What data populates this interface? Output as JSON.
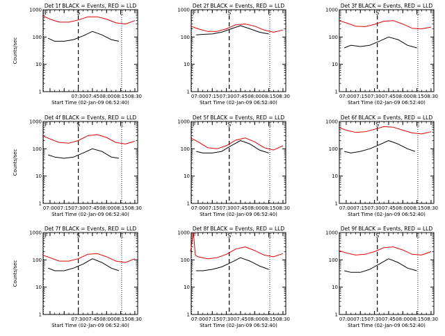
{
  "ytick_labels": [
    "1",
    "10",
    "100",
    "1000"
  ],
  "colors": {
    "events": "#000000",
    "lld": "#e00000",
    "frame": "#000000"
  },
  "chart_data": [
    {
      "type": "line",
      "title": "Det 1f BLACK = Events, RED = LLD",
      "xlabel": "Start Time (02-Jan-09 06:52:40)",
      "ylabel": "Counts/sec",
      "yscale": "log",
      "ylim": [
        1,
        1000
      ],
      "xlim": [
        "06:52:40",
        "08:33:00"
      ],
      "xtick_labels": [
        "07:30",
        "07:45",
        "08:00",
        "08:15",
        "08:30"
      ],
      "markers": [
        {
          "label": "F",
          "x": "06:53"
        },
        {
          "label": "S",
          "x": "07:30"
        },
        {
          "label": "E",
          "x": "08:16"
        }
      ],
      "series": [
        {
          "name": "Events",
          "x": [
            "06:58",
            "07:05",
            "07:15",
            "07:25",
            "07:35",
            "07:45",
            "07:55",
            "08:05",
            "08:13"
          ],
          "values": [
            90,
            70,
            70,
            80,
            110,
            160,
            120,
            80,
            70
          ]
        },
        {
          "name": "LLD",
          "x": [
            "06:52",
            "07:00",
            "07:10",
            "07:20",
            "07:30",
            "07:40",
            "07:50",
            "08:00",
            "08:10",
            "08:20",
            "08:30"
          ],
          "values": [
            600,
            450,
            350,
            350,
            420,
            550,
            550,
            450,
            330,
            300,
            400
          ]
        }
      ]
    },
    {
      "type": "line",
      "title": "Det 2f BLACK = Events, RED = LLD",
      "xlabel": "Start Time (02-Jan-09 06:52:40)",
      "ylabel": "",
      "yscale": "log",
      "ylim": [
        1,
        1000
      ],
      "xlim": [
        "06:52:40",
        "08:33:00"
      ],
      "xtick_labels": [
        "07:00",
        "07:15",
        "07:30",
        "07:45",
        "08:00",
        "08:15",
        "08:30"
      ],
      "markers": [
        {
          "label": "F",
          "x": "06:53"
        },
        {
          "label": "S",
          "x": "07:33"
        },
        {
          "label": "E",
          "x": "08:16"
        }
      ],
      "series": [
        {
          "name": "Events",
          "x": [
            "06:58",
            "07:05",
            "07:15",
            "07:25",
            "07:35",
            "07:45",
            "07:55",
            "08:05",
            "08:15"
          ],
          "values": [
            120,
            125,
            130,
            150,
            200,
            260,
            200,
            150,
            130
          ]
        },
        {
          "name": "LLD",
          "x": [
            "06:52",
            "07:00",
            "07:10",
            "07:20",
            "07:30",
            "07:40",
            "07:50",
            "08:00",
            "08:10",
            "08:20",
            "08:30"
          ],
          "values": [
            250,
            200,
            160,
            160,
            200,
            280,
            300,
            250,
            180,
            150,
            180
          ]
        }
      ]
    },
    {
      "type": "line",
      "title": "Det 3f BLACK = Events, RED = LLD",
      "xlabel": "Start Time (02-Jan-09 06:52:40)",
      "ylabel": "",
      "yscale": "log",
      "ylim": [
        1,
        1000
      ],
      "xlim": [
        "06:52:40",
        "08:33:00"
      ],
      "xtick_labels": [
        "07:00",
        "07:15",
        "07:30",
        "07:45",
        "08:00",
        "08:15",
        "08:30"
      ],
      "markers": [
        {
          "label": "S",
          "x": "07:33"
        },
        {
          "label": "E",
          "x": "08:16"
        }
      ],
      "series": [
        {
          "name": "Events",
          "x": [
            "06:58",
            "07:05",
            "07:15",
            "07:25",
            "07:35",
            "07:45",
            "07:55",
            "08:05",
            "08:15"
          ],
          "values": [
            40,
            50,
            45,
            50,
            70,
            100,
            80,
            50,
            40
          ]
        },
        {
          "name": "LLD",
          "x": [
            "06:52",
            "07:00",
            "07:10",
            "07:20",
            "07:30",
            "07:40",
            "07:50",
            "08:00",
            "08:10",
            "08:20",
            "08:30"
          ],
          "values": [
            400,
            330,
            250,
            240,
            290,
            380,
            400,
            300,
            210,
            200,
            230
          ]
        }
      ]
    },
    {
      "type": "line",
      "title": "Det 4f BLACK = Events, RED = LLD",
      "xlabel": "Start Time (02-Jan-09 06:52:40)",
      "ylabel": "Counts/sec",
      "yscale": "log",
      "ylim": [
        1,
        1000
      ],
      "xlim": [
        "06:52:40",
        "08:33:00"
      ],
      "xtick_labels": [
        "07:00",
        "07:15",
        "07:30",
        "07:45",
        "08:00",
        "08:15",
        "08:30"
      ],
      "markers": [
        {
          "label": "F",
          "x": "06:53"
        },
        {
          "label": "S",
          "x": "07:30"
        },
        {
          "label": "E",
          "x": "08:16"
        }
      ],
      "series": [
        {
          "name": "Events",
          "x": [
            "06:58",
            "07:05",
            "07:15",
            "07:25",
            "07:35",
            "07:45",
            "07:55",
            "08:05",
            "08:13"
          ],
          "values": [
            60,
            50,
            45,
            50,
            70,
            100,
            80,
            50,
            45
          ]
        },
        {
          "name": "LLD",
          "x": [
            "06:52",
            "07:00",
            "07:10",
            "07:20",
            "07:30",
            "07:40",
            "07:50",
            "08:00",
            "08:10",
            "08:20",
            "08:30"
          ],
          "values": [
            300,
            230,
            170,
            160,
            200,
            300,
            330,
            260,
            170,
            150,
            190
          ]
        }
      ]
    },
    {
      "type": "line",
      "title": "Det 5f BLACK = Events, RED = LLD",
      "xlabel": "Start Time (02-Jan-09 06:52:40)",
      "ylabel": "",
      "yscale": "log",
      "ylim": [
        1,
        1000
      ],
      "xlim": [
        "06:52:40",
        "08:33:00"
      ],
      "xtick_labels": [
        "07:00",
        "07:15",
        "07:30",
        "07:45",
        "08:00",
        "08:15",
        "08:30"
      ],
      "markers": [
        {
          "label": "F",
          "x": "06:53"
        },
        {
          "label": "S",
          "x": "07:33"
        },
        {
          "label": "E",
          "x": "08:16"
        }
      ],
      "series": [
        {
          "name": "Events",
          "x": [
            "06:58",
            "07:05",
            "07:15",
            "07:25",
            "07:35",
            "07:45",
            "07:55",
            "08:05",
            "08:15"
          ],
          "values": [
            80,
            70,
            70,
            80,
            130,
            200,
            150,
            90,
            70
          ]
        },
        {
          "name": "LLD",
          "x": [
            "06:52",
            "07:00",
            "07:10",
            "07:20",
            "07:30",
            "07:40",
            "07:50",
            "08:00",
            "08:10",
            "08:20",
            "08:30"
          ],
          "values": [
            250,
            180,
            110,
            100,
            130,
            210,
            250,
            180,
            110,
            90,
            130
          ]
        }
      ]
    },
    {
      "type": "line",
      "title": "Det 6f BLACK = Events, RED = LLD",
      "xlabel": "Start Time (02-Jan-09 06:52:40)",
      "ylabel": "",
      "yscale": "log",
      "ylim": [
        1,
        1000
      ],
      "xlim": [
        "06:52:40",
        "08:33:00"
      ],
      "xtick_labels": [
        "07:00",
        "07:15",
        "07:30",
        "07:45",
        "08:00",
        "08:15",
        "08:30"
      ],
      "markers": [
        {
          "label": "S",
          "x": "07:33"
        },
        {
          "label": "E",
          "x": "08:16"
        }
      ],
      "series": [
        {
          "name": "Events",
          "x": [
            "06:58",
            "07:05",
            "07:15",
            "07:25",
            "07:35",
            "07:45",
            "07:55",
            "08:05",
            "08:13"
          ],
          "values": [
            80,
            70,
            80,
            100,
            140,
            200,
            150,
            100,
            80
          ]
        },
        {
          "name": "LLD",
          "x": [
            "06:52",
            "07:00",
            "07:10",
            "07:20",
            "07:30",
            "07:40",
            "07:50",
            "08:00",
            "08:10",
            "08:20",
            "08:30"
          ],
          "values": [
            600,
            480,
            400,
            420,
            520,
            650,
            620,
            480,
            380,
            350,
            420
          ]
        }
      ]
    },
    {
      "type": "line",
      "title": "Det 7f BLACK = Events, RED = LLD",
      "xlabel": "Start Time (02-Jan-09 06:52:40)",
      "ylabel": "Counts/sec",
      "yscale": "log",
      "ylim": [
        1,
        1000
      ],
      "xlim": [
        "06:52:40",
        "08:33:00"
      ],
      "xtick_labels": [
        "07:30",
        "07:45",
        "08:00",
        "08:15",
        "08:30"
      ],
      "markers": [
        {
          "label": "F",
          "x": "06:53"
        },
        {
          "label": "S",
          "x": "07:30"
        },
        {
          "label": "E",
          "x": "08:16"
        }
      ],
      "series": [
        {
          "name": "Events",
          "x": [
            "06:58",
            "07:05",
            "07:15",
            "07:25",
            "07:35",
            "07:45",
            "07:55",
            "08:05",
            "08:13"
          ],
          "values": [
            50,
            40,
            40,
            50,
            70,
            110,
            80,
            50,
            40
          ]
        },
        {
          "name": "LLD",
          "x": [
            "06:52",
            "07:00",
            "07:10",
            "07:20",
            "07:30",
            "07:40",
            "07:50",
            "08:00",
            "08:10",
            "08:20",
            "08:30"
          ],
          "values": [
            150,
            120,
            90,
            90,
            110,
            160,
            170,
            130,
            90,
            80,
            110
          ]
        }
      ]
    },
    {
      "type": "line",
      "title": "Det 8f BLACK = Events, RED = LLD",
      "xlabel": "Start Time (02-Jan-09 06:52:40)",
      "ylabel": "",
      "yscale": "log",
      "ylim": [
        1,
        1000
      ],
      "xlim": [
        "06:52:40",
        "08:33:00"
      ],
      "xtick_labels": [
        "07:00",
        "07:15",
        "07:30",
        "07:45",
        "08:00",
        "08:15",
        "08:30"
      ],
      "markers": [
        {
          "label": "F",
          "x": "06:53"
        },
        {
          "label": "S",
          "x": "07:33"
        },
        {
          "label": "E",
          "x": "08:16"
        }
      ],
      "series": [
        {
          "name": "Events",
          "x": [
            "06:58",
            "07:05",
            "07:15",
            "07:25",
            "07:35",
            "07:45",
            "07:55",
            "08:05",
            "08:15"
          ],
          "values": [
            40,
            40,
            45,
            55,
            80,
            120,
            90,
            60,
            45
          ]
        },
        {
          "name": "LLD",
          "x": [
            "06:52",
            "06:55",
            "06:57",
            "07:00",
            "07:10",
            "07:20",
            "07:30",
            "07:40",
            "07:50",
            "08:00",
            "08:10",
            "08:20",
            "08:30"
          ],
          "values": [
            200,
            1000,
            150,
            130,
            110,
            120,
            160,
            250,
            300,
            220,
            150,
            130,
            170
          ]
        }
      ]
    },
    {
      "type": "line",
      "title": "Det 9f BLACK = Events, RED = LLD",
      "xlabel": "Start Time (02-Jan-09 06:52:40)",
      "ylabel": "",
      "yscale": "log",
      "ylim": [
        1,
        1000
      ],
      "xlim": [
        "06:52:40",
        "08:33:00"
      ],
      "xtick_labels": [
        "07:00",
        "07:15",
        "07:30",
        "07:45",
        "08:00",
        "08:15",
        "08:30"
      ],
      "markers": [
        {
          "label": "S",
          "x": "07:33"
        },
        {
          "label": "E",
          "x": "08:16"
        }
      ],
      "series": [
        {
          "name": "Events",
          "x": [
            "06:58",
            "07:05",
            "07:15",
            "07:25",
            "07:35",
            "07:45",
            "07:55",
            "08:05",
            "08:15"
          ],
          "values": [
            40,
            35,
            35,
            45,
            70,
            110,
            80,
            50,
            40
          ]
        },
        {
          "name": "LLD",
          "x": [
            "06:52",
            "07:00",
            "07:10",
            "07:20",
            "07:30",
            "07:40",
            "07:50",
            "08:00",
            "08:10",
            "08:20",
            "08:30"
          ],
          "values": [
            220,
            180,
            150,
            160,
            200,
            280,
            300,
            230,
            160,
            150,
            200
          ]
        }
      ]
    }
  ]
}
